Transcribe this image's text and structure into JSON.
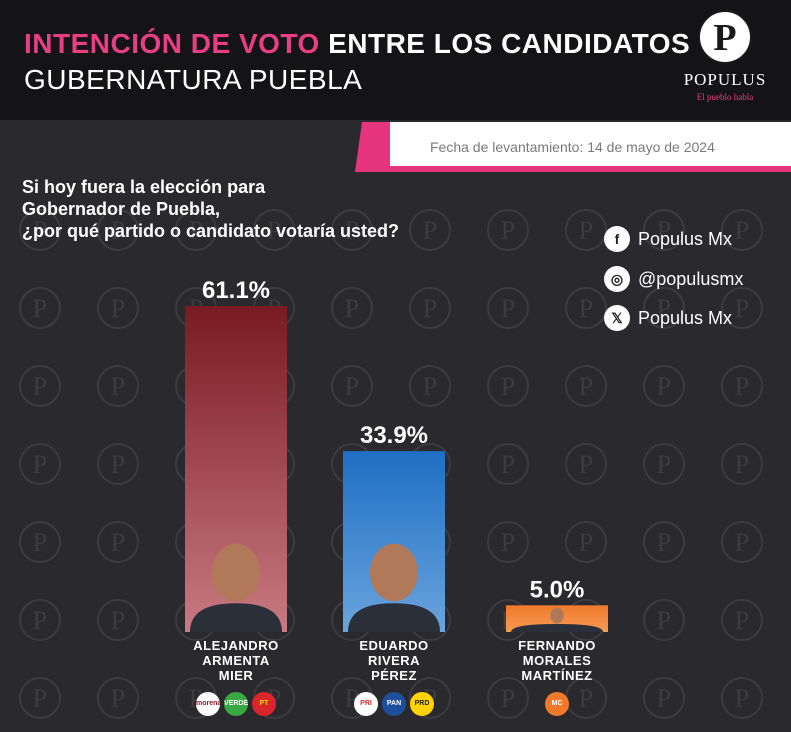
{
  "header": {
    "title_highlight": "INTENCIÓN DE VOTO",
    "title_rest": " ENTRE LOS CANDIDATOS",
    "subtitle": "GUBERNATURA PUEBLA",
    "brand": "POPULUS",
    "brand_tagline": "El pueblo habla",
    "logo_letter": "P"
  },
  "date_label": "Fecha de levantamiento: 14 de mayo de 2024",
  "question": {
    "line1": "Si hoy fuera la elección para",
    "line2": "Gobernador de Puebla,",
    "line3": "¿por qué partido o candidato votaría usted?"
  },
  "social": [
    {
      "icon": "facebook-icon",
      "glyph": "f",
      "text": "Populus Mx"
    },
    {
      "icon": "instagram-icon",
      "glyph": "◎",
      "text": "@populusmx"
    },
    {
      "icon": "x-twitter-icon",
      "glyph": "𝕏",
      "text": "Populus Mx"
    }
  ],
  "chart_data": {
    "type": "bar",
    "categories": [
      "ALEJANDRO ARMENTA MIER",
      "EDUARDO RIVERA PÉREZ",
      "FERNANDO MORALES MARTÍNEZ"
    ],
    "name_lines": [
      [
        "ALEJANDRO",
        "ARMENTA",
        "MIER"
      ],
      [
        "EDUARDO",
        "RIVERA",
        "PÉREZ"
      ],
      [
        "FERNANDO",
        "MORALES",
        "MARTÍNEZ"
      ]
    ],
    "values": [
      61.1,
      33.9,
      5.0
    ],
    "value_labels": [
      "61.1%",
      "33.9%",
      "5.0%"
    ],
    "ylim": [
      0,
      61.1
    ],
    "colors": [
      {
        "top": "#7a1a22",
        "bottom": "#c97a82"
      },
      {
        "top": "#1e6fc4",
        "bottom": "#6aa4dd"
      },
      {
        "top": "#f07a2a",
        "bottom": "#f59a55"
      }
    ],
    "parties": [
      [
        {
          "name": "morena",
          "bg": "#ffffff",
          "fg": "#8b1c2b"
        },
        {
          "name": "VERDE",
          "bg": "#3aa842",
          "fg": "#ffffff"
        },
        {
          "name": "PT",
          "bg": "#d8262c",
          "fg": "#ffd200"
        }
      ],
      [
        {
          "name": "PRI",
          "bg": "#ffffff",
          "fg": "#d8262c"
        },
        {
          "name": "PAN",
          "bg": "#1e4f9c",
          "fg": "#ffffff"
        },
        {
          "name": "PRD",
          "bg": "#ffd200",
          "fg": "#222222"
        }
      ],
      [
        {
          "name": "MC",
          "bg": "#f07a2a",
          "fg": "#ffffff"
        }
      ]
    ]
  }
}
